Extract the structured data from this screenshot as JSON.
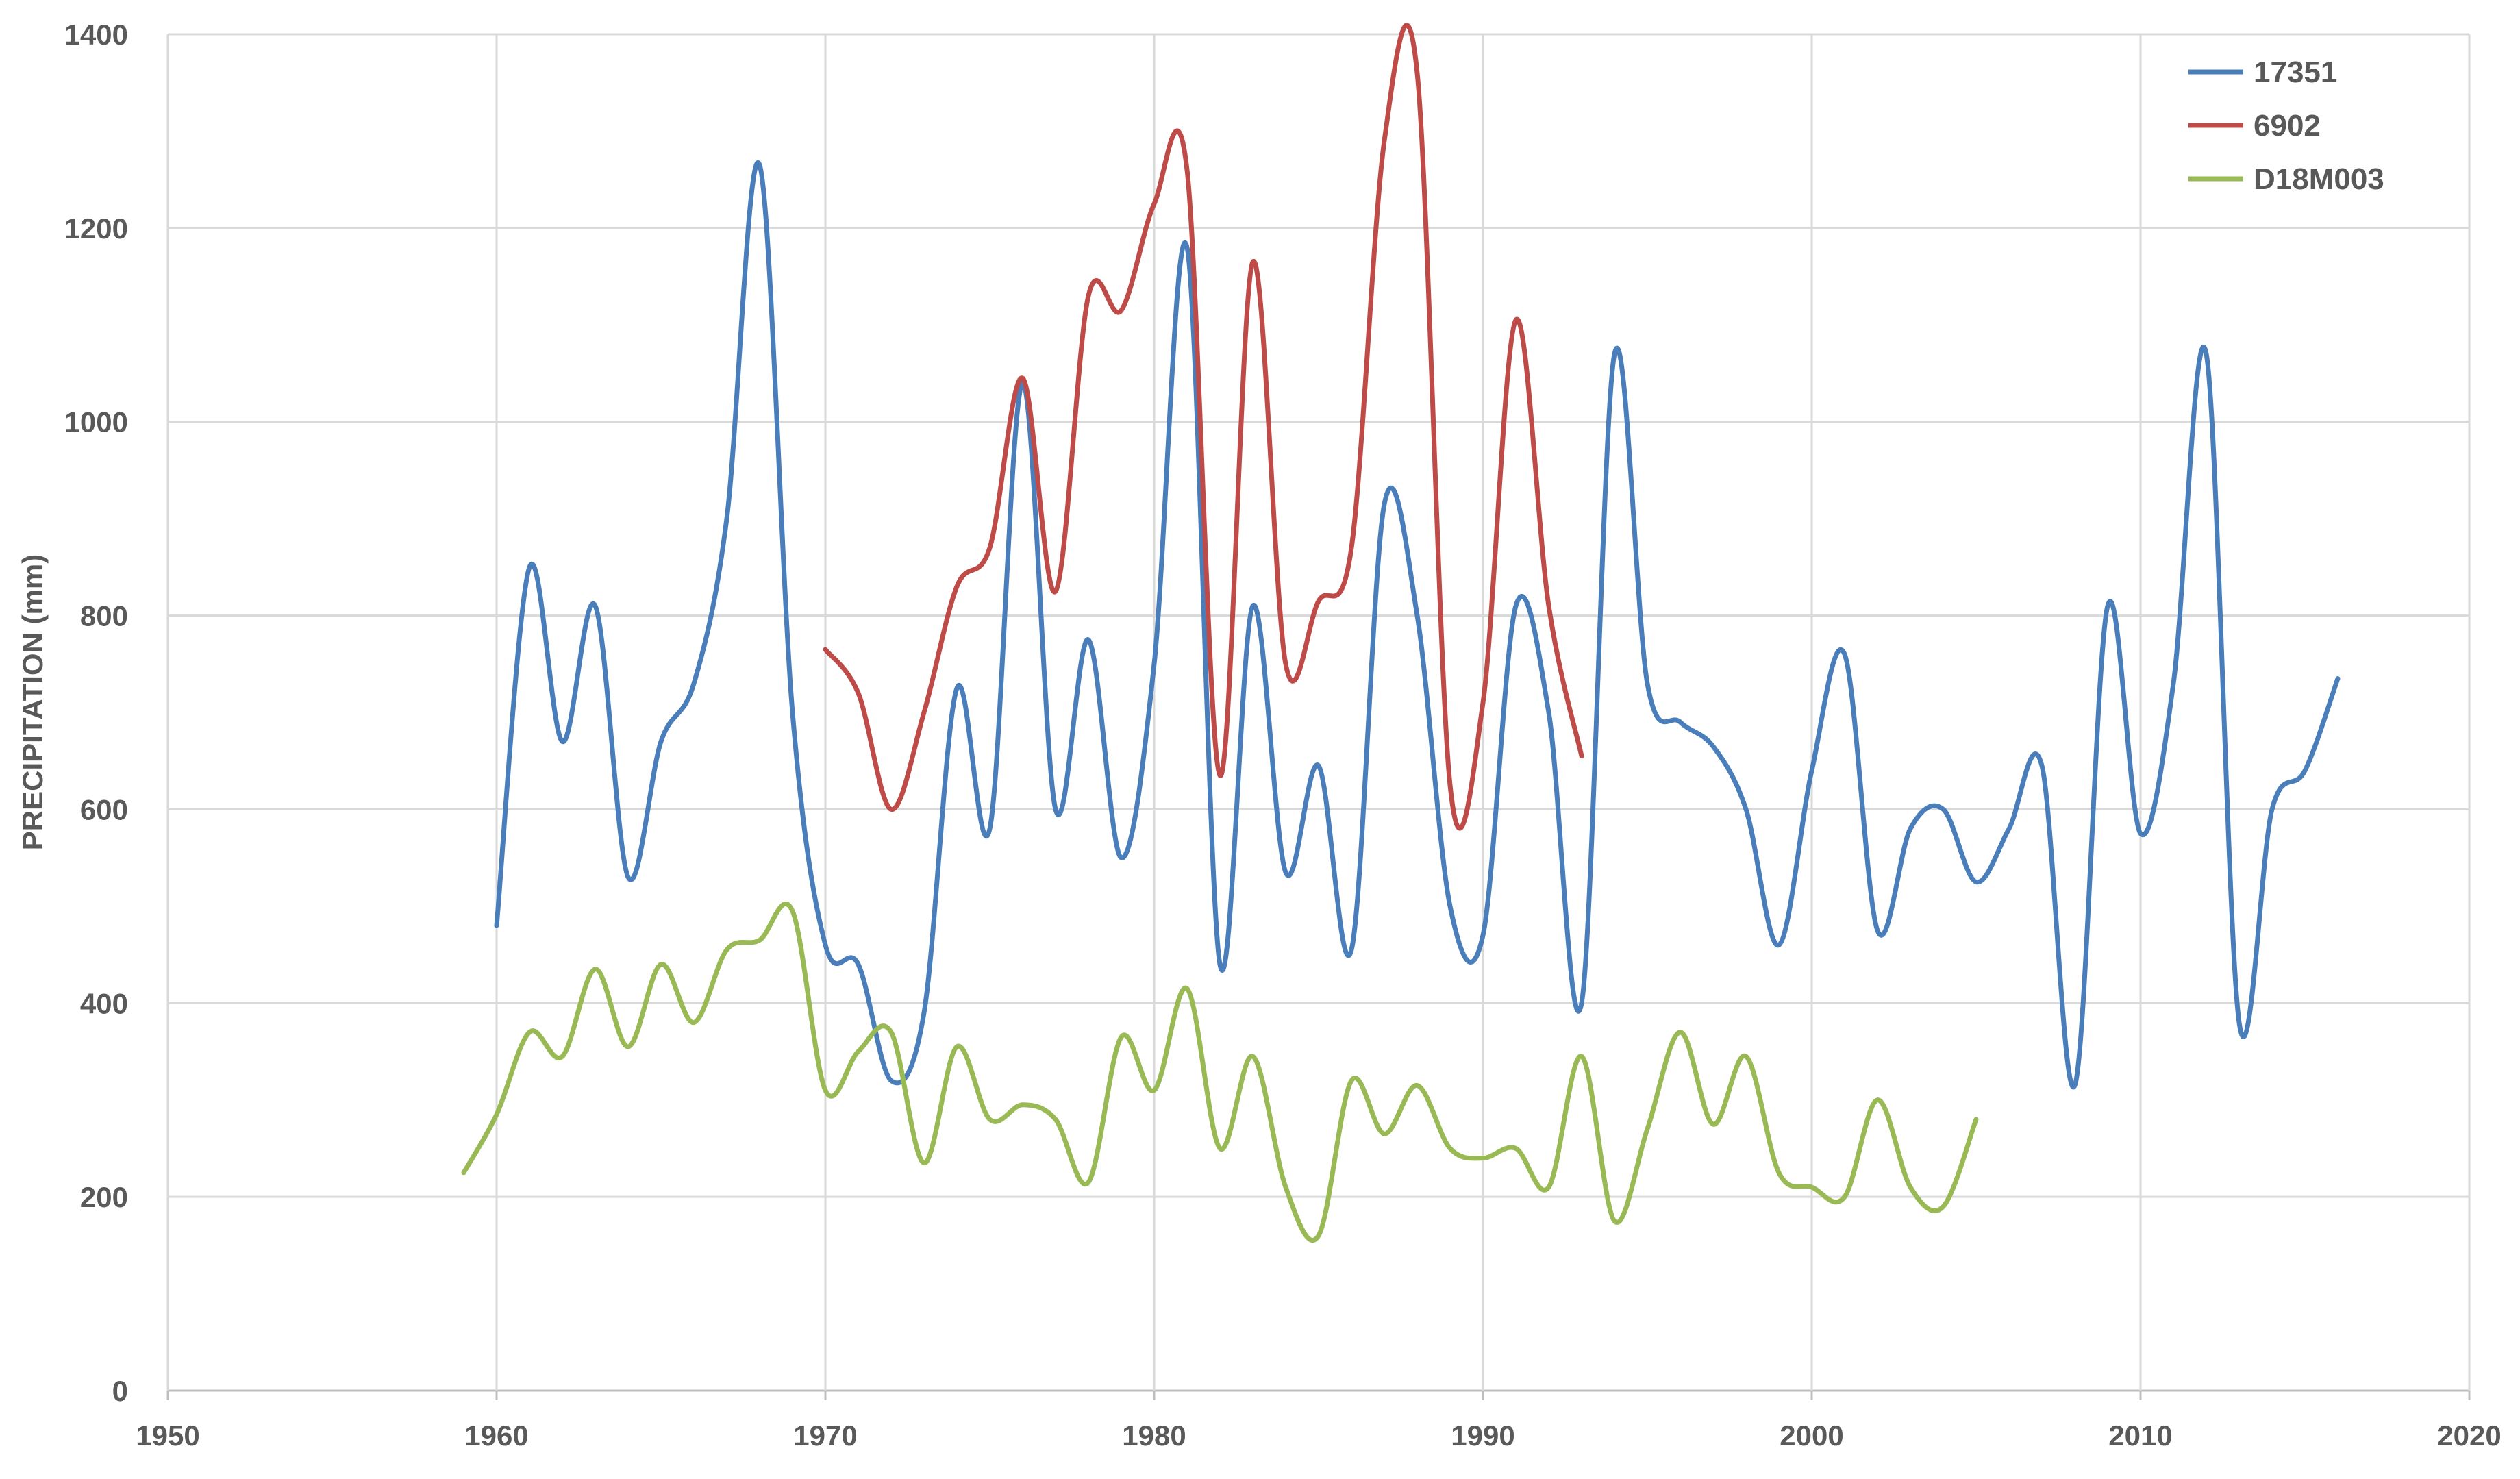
{
  "chart_data": {
    "type": "line",
    "title": "",
    "xlabel": "",
    "ylabel": "PRECIPITATION (mm)",
    "xlim": [
      1950,
      2020
    ],
    "ylim": [
      0,
      1400
    ],
    "x_ticks": [
      1950,
      1960,
      1970,
      1980,
      1990,
      2000,
      2010,
      2020
    ],
    "y_ticks": [
      0,
      200,
      400,
      600,
      800,
      1000,
      1200,
      1400
    ],
    "grid": true,
    "legend_position": "top-right",
    "series": [
      {
        "name": "17351",
        "color": "#4a7ebb",
        "x": [
          1960,
          1961,
          1962,
          1963,
          1964,
          1965,
          1966,
          1967,
          1968,
          1969,
          1970,
          1971,
          1972,
          1973,
          1974,
          1975,
          1976,
          1977,
          1978,
          1979,
          1980,
          1981,
          1982,
          1983,
          1984,
          1985,
          1986,
          1987,
          1988,
          1989,
          1990,
          1991,
          1992,
          1993,
          1994,
          1995,
          1996,
          1997,
          1998,
          1999,
          2000,
          2001,
          2002,
          2003,
          2004,
          2005,
          2006,
          2007,
          2008,
          2009,
          2010,
          2011,
          2012,
          2013,
          2014,
          2015,
          2016
        ],
        "values": [
          480,
          850,
          670,
          810,
          530,
          670,
          730,
          900,
          1265,
          700,
          460,
          440,
          320,
          390,
          725,
          580,
          1040,
          600,
          775,
          550,
          750,
          1180,
          440,
          810,
          535,
          645,
          455,
          915,
          800,
          500,
          470,
          810,
          700,
          400,
          1070,
          730,
          690,
          665,
          600,
          460,
          640,
          760,
          475,
          580,
          600,
          525,
          580,
          645,
          315,
          810,
          575,
          730,
          1070,
          380,
          600,
          640,
          735
        ]
      },
      {
        "name": "6902",
        "color": "#be4b48",
        "x": [
          1970,
          1971,
          1972,
          1973,
          1974,
          1975,
          1976,
          1977,
          1978,
          1979,
          1980,
          1981,
          1982,
          1983,
          1984,
          1985,
          1986,
          1987,
          1988,
          1989,
          1990,
          1991,
          1992,
          1993
        ],
        "values": [
          765,
          720,
          600,
          700,
          830,
          870,
          1045,
          825,
          1130,
          1115,
          1225,
          1260,
          635,
          1165,
          750,
          815,
          870,
          1290,
          1360,
          625,
          710,
          1105,
          810,
          655
        ]
      },
      {
        "name": "D18M003",
        "color": "#98b954",
        "x": [
          1959,
          1960,
          1961,
          1962,
          1963,
          1964,
          1965,
          1966,
          1967,
          1968,
          1969,
          1970,
          1971,
          1972,
          1973,
          1974,
          1975,
          1976,
          1977,
          1978,
          1979,
          1980,
          1981,
          1982,
          1983,
          1984,
          1985,
          1986,
          1987,
          1988,
          1989,
          1990,
          1991,
          1992,
          1993,
          1994,
          1995,
          1996,
          1997,
          1998,
          1999,
          2000,
          2001,
          2002,
          2003,
          2004,
          2005
        ],
        "values": [
          225,
          285,
          370,
          345,
          435,
          355,
          440,
          380,
          455,
          465,
          495,
          310,
          350,
          370,
          235,
          355,
          280,
          295,
          280,
          215,
          365,
          310,
          415,
          250,
          345,
          210,
          160,
          320,
          265,
          315,
          250,
          240,
          250,
          210,
          345,
          175,
          270,
          370,
          275,
          345,
          225,
          210,
          200,
          300,
          210,
          190,
          280
        ]
      }
    ]
  }
}
